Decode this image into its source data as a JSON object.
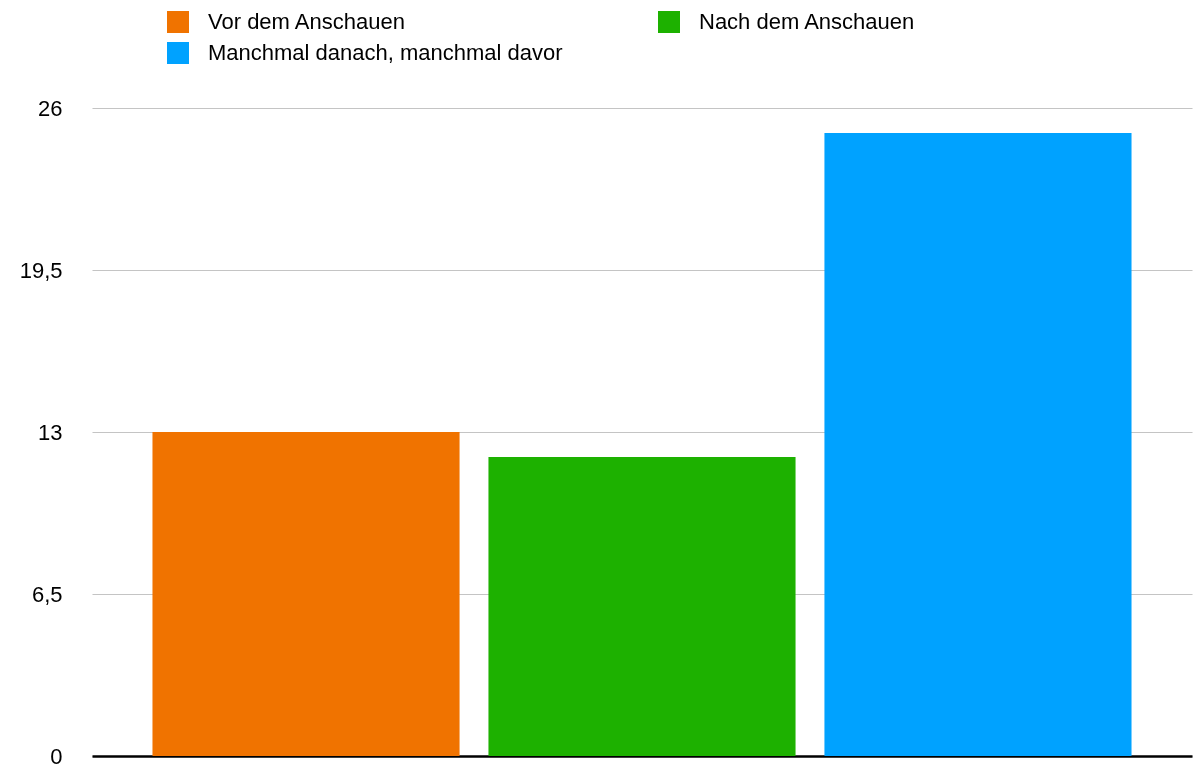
{
  "chart_data": {
    "type": "bar",
    "categories": [
      null
    ],
    "series": [
      {
        "name": "Vor dem Anschauen",
        "color": "#f07300",
        "values": [
          13
        ]
      },
      {
        "name": "Nach dem Anschauen",
        "color": "#1db100",
        "values": [
          12
        ]
      },
      {
        "name": "Manchmal danach, manchmal davor",
        "color": "#00a2ff",
        "values": [
          25
        ]
      }
    ],
    "ylim": [
      0,
      26
    ],
    "yticks": [
      0,
      {
        "value": 6.5,
        "label": "6,5"
      },
      13,
      {
        "value": 19.5,
        "label": "19,5"
      },
      26
    ],
    "grid": "y",
    "legend": "top"
  }
}
